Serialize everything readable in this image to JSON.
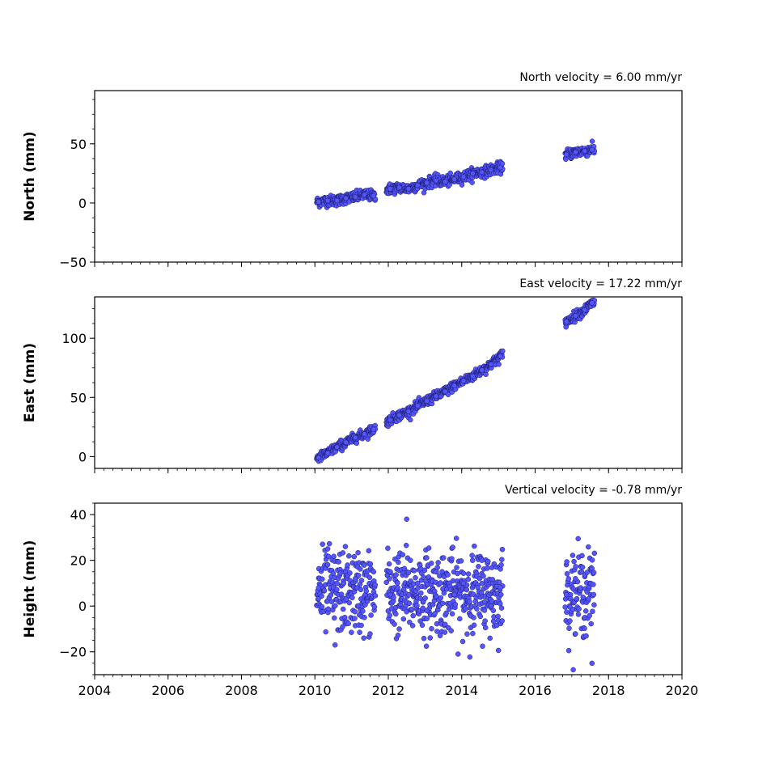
{
  "colors": {
    "marker_fill": "#5555ff",
    "marker_edge": "#1a1a66",
    "axis": "#000000"
  },
  "chart_data": [
    {
      "type": "scatter",
      "title": "North velocity = 6.00 mm/yr",
      "xlabel": "",
      "ylabel": "North (mm)",
      "xlim": [
        2004,
        2020
      ],
      "ylim": [
        -50,
        95
      ],
      "xticks": [
        2004,
        2006,
        2008,
        2010,
        2012,
        2014,
        2016,
        2018,
        2020
      ],
      "xtick_labels": [
        "",
        "",
        "",
        "",
        "",
        "",
        "",
        "",
        ""
      ],
      "yticks": [
        -50,
        0,
        50
      ],
      "ytick_labels": [
        "−50",
        "0",
        "50"
      ],
      "series": [
        {
          "points": [
            [
              2010.1,
              1
            ],
            [
              2010.35,
              2
            ],
            [
              2010.6,
              2
            ],
            [
              2010.85,
              4
            ],
            [
              2011.1,
              5
            ],
            [
              2011.35,
              7
            ],
            [
              2011.6,
              6
            ],
            [
              2012.05,
              12
            ],
            [
              2012.3,
              13
            ],
            [
              2012.55,
              12
            ],
            [
              2012.8,
              15
            ],
            [
              2013.05,
              17
            ],
            [
              2013.3,
              19
            ],
            [
              2013.55,
              18
            ],
            [
              2013.8,
              20
            ],
            [
              2014.05,
              22
            ],
            [
              2014.3,
              25
            ],
            [
              2014.55,
              26
            ],
            [
              2014.8,
              28
            ],
            [
              2015.05,
              30
            ],
            [
              2016.85,
              41
            ],
            [
              2017.1,
              43
            ],
            [
              2017.35,
              44
            ],
            [
              2017.55,
              45
            ]
          ]
        }
      ]
    },
    {
      "type": "scatter",
      "title": "East velocity = 17.22 mm/yr",
      "xlabel": "",
      "ylabel": "East (mm)",
      "xlim": [
        2004,
        2020
      ],
      "ylim": [
        -10,
        135
      ],
      "xticks": [
        2004,
        2006,
        2008,
        2010,
        2012,
        2014,
        2016,
        2018,
        2020
      ],
      "xtick_labels": [
        "",
        "",
        "",
        "",
        "",
        "",
        "",
        "",
        ""
      ],
      "yticks": [
        0,
        50,
        100
      ],
      "ytick_labels": [
        "0",
        "50",
        "100"
      ],
      "series": [
        {
          "points": [
            [
              2010.1,
              -1
            ],
            [
              2010.35,
              3
            ],
            [
              2010.6,
              8
            ],
            [
              2010.85,
              12
            ],
            [
              2011.1,
              16
            ],
            [
              2011.35,
              19
            ],
            [
              2011.6,
              23
            ],
            [
              2012.05,
              31
            ],
            [
              2012.3,
              35
            ],
            [
              2012.55,
              38
            ],
            [
              2012.8,
              43
            ],
            [
              2013.05,
              47
            ],
            [
              2013.3,
              51
            ],
            [
              2013.55,
              55
            ],
            [
              2013.8,
              60
            ],
            [
              2014.05,
              64
            ],
            [
              2014.3,
              68
            ],
            [
              2014.55,
              73
            ],
            [
              2014.8,
              78
            ],
            [
              2015.05,
              85
            ],
            [
              2016.85,
              114
            ],
            [
              2017.1,
              119
            ],
            [
              2017.35,
              124
            ],
            [
              2017.55,
              130
            ]
          ]
        }
      ]
    },
    {
      "type": "scatter",
      "title": "Vertical velocity = -0.78 mm/yr",
      "xlabel": "",
      "ylabel": "Height (mm)",
      "xlim": [
        2004,
        2020
      ],
      "ylim": [
        -30,
        45
      ],
      "xticks": [
        2004,
        2006,
        2008,
        2010,
        2012,
        2014,
        2016,
        2018,
        2020
      ],
      "xtick_labels": [
        "2004",
        "2006",
        "2008",
        "2010",
        "2012",
        "2014",
        "2016",
        "2018",
        "2020"
      ],
      "yticks": [
        -20,
        0,
        20,
        40
      ],
      "ytick_labels": [
        "−20",
        "0",
        "20",
        "40"
      ],
      "series": [
        {
          "points": [
            [
              2010.1,
              8
            ],
            [
              2010.35,
              25
            ],
            [
              2010.55,
              -17
            ],
            [
              2010.85,
              3
            ],
            [
              2011.1,
              12
            ],
            [
              2011.35,
              -5
            ],
            [
              2011.6,
              15
            ],
            [
              2012.05,
              5
            ],
            [
              2012.3,
              -10
            ],
            [
              2012.5,
              38
            ],
            [
              2012.8,
              10
            ],
            [
              2013.05,
              -2
            ],
            [
              2013.3,
              15
            ],
            [
              2013.55,
              -8
            ],
            [
              2013.8,
              5
            ],
            [
              2014.05,
              10
            ],
            [
              2014.3,
              -12
            ],
            [
              2014.55,
              20
            ],
            [
              2014.8,
              0
            ],
            [
              2015.05,
              8
            ],
            [
              2016.85,
              5
            ],
            [
              2017.1,
              12
            ],
            [
              2017.35,
              -5
            ],
            [
              2017.55,
              -25
            ]
          ]
        }
      ]
    }
  ]
}
